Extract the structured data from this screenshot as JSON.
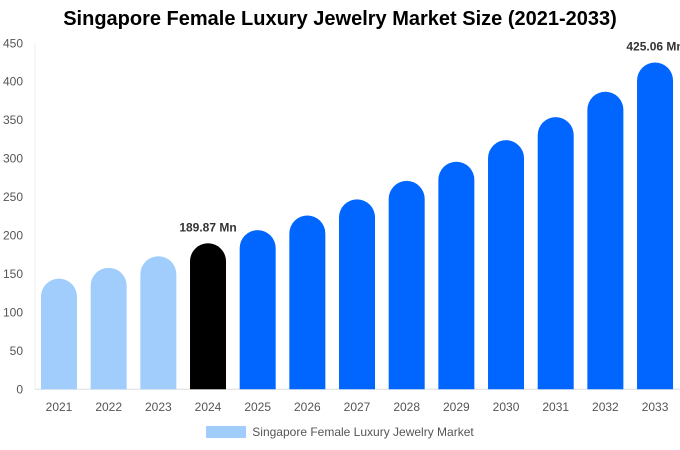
{
  "chart_data": {
    "type": "bar",
    "title": "Singapore Female Luxury Jewelry Market Size (2021-2033)",
    "categories": [
      "2021",
      "2022",
      "2023",
      "2024",
      "2025",
      "2026",
      "2027",
      "2028",
      "2029",
      "2030",
      "2031",
      "2032",
      "2033"
    ],
    "series": [
      {
        "name": "Singapore Female Luxury Jewelry Market",
        "values": [
          144,
          158,
          173,
          189.87,
          207,
          226,
          247,
          271,
          296,
          324,
          354,
          387,
          425.06
        ]
      }
    ],
    "bar_colors": [
      "#a0cdfc",
      "#a0cdfc",
      "#a0cdfc",
      "#000000",
      "#0066ff",
      "#0066ff",
      "#0066ff",
      "#0066ff",
      "#0066ff",
      "#0066ff",
      "#0066ff",
      "#0066ff",
      "#0066ff"
    ],
    "legend_color": "#a0cdfc",
    "data_labels": [
      {
        "index": 3,
        "text": "189.87 Mn"
      },
      {
        "index": 12,
        "text": "425.06 Mn"
      }
    ],
    "yticks": [
      0,
      50,
      100,
      150,
      200,
      250,
      300,
      350,
      400,
      450
    ],
    "ylim": [
      0,
      450
    ],
    "grid": false,
    "legend_position": "bottom"
  }
}
